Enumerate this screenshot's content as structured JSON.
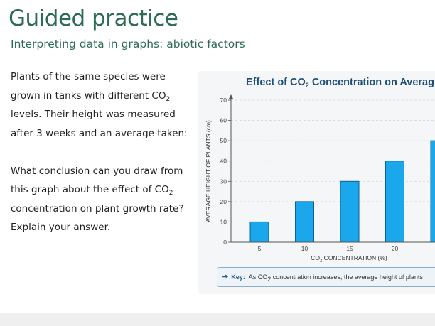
{
  "slide": {
    "title": "Guided practice",
    "subtitle": "Interpreting data in graphs: abiotic factors"
  },
  "prompt": {
    "p1_before": "Plants of the same species were grown in tanks with different CO",
    "p1_sub": "2",
    "p1_after": " levels. Their height was measured after 3 weeks and an average taken:",
    "p2_before": "What conclusion can you draw from this graph about the effect of CO",
    "p2_sub": "2",
    "p2_after": " concentration on plant growth rate? Explain your answer."
  },
  "key": {
    "label": "Key:",
    "text_before": "As CO",
    "text_sub": "2",
    "text_after": " concentration increases, the average height of plants"
  },
  "colors": {
    "title": "#2e6b57",
    "bar_fill": "#1aa7ec",
    "bar_stroke": "#0d5f99",
    "chart_title": "#1d4f7a"
  },
  "chart_data": {
    "type": "bar",
    "title_before": "Effect of CO",
    "title_sub": "2",
    "title_after": " Concentration on Averag",
    "xlabel_before": "CO",
    "xlabel_sub": "2",
    "xlabel_after": " CONCENTRATION (%)",
    "ylabel": "AVERAGE HEIGHT OF PLANTS (cm)",
    "categories": [
      "5",
      "10",
      "15",
      "20",
      ""
    ],
    "values": [
      10,
      20,
      30,
      40,
      50
    ],
    "yticks": [
      "0",
      "10",
      "20",
      "30",
      "40",
      "50",
      "60",
      "70"
    ],
    "ylim": [
      0,
      70
    ],
    "grid": true
  }
}
